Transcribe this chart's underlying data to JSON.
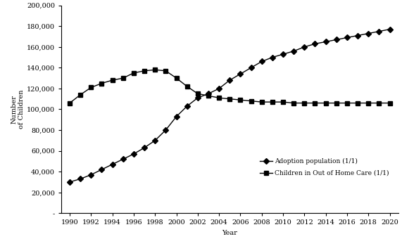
{
  "years": [
    1990,
    1991,
    1992,
    1993,
    1994,
    1995,
    1996,
    1997,
    1998,
    1999,
    2000,
    2001,
    2002,
    2003,
    2004,
    2005,
    2006,
    2007,
    2008,
    2009,
    2010,
    2011,
    2012,
    2013,
    2014,
    2015,
    2016,
    2017,
    2018,
    2019,
    2020
  ],
  "adoption_pop": [
    30000,
    33000,
    37000,
    42000,
    47000,
    52000,
    57000,
    63000,
    70000,
    80000,
    93000,
    103000,
    111000,
    115000,
    120000,
    128000,
    134000,
    140000,
    146000,
    150000,
    153000,
    156000,
    160000,
    163000,
    165000,
    167000,
    169000,
    171000,
    173000,
    175000,
    177000
  ],
  "foster_care": [
    106000,
    114000,
    121000,
    125000,
    128000,
    130000,
    135000,
    137000,
    138000,
    137000,
    130000,
    122000,
    115000,
    113000,
    111000,
    110000,
    109000,
    108000,
    107000,
    107000,
    107000,
    106000,
    106000,
    106000,
    106000,
    106000,
    106000,
    106000,
    106000,
    106000,
    106000
  ],
  "xlabel": "Year",
  "ylabel": "Number\nof Children",
  "ylim": [
    0,
    200000
  ],
  "yticks": [
    0,
    20000,
    40000,
    60000,
    80000,
    100000,
    120000,
    140000,
    160000,
    180000,
    200000
  ],
  "ytick_labels": [
    "-",
    "20,000",
    "40,000",
    "60,000",
    "80,000",
    "100,000",
    "120,000",
    "140,000",
    "160,000",
    "180,000",
    "200,000"
  ],
  "line1_label": "Adoption population (1/1)",
  "line2_label": "Children in Out of Home Care (1/1)",
  "line_color": "#000000",
  "marker1": "D",
  "marker2": "s",
  "markersize": 4,
  "linewidth": 1.0,
  "tick_fontsize": 7,
  "label_fontsize": 7,
  "legend_fontsize": 6.5
}
